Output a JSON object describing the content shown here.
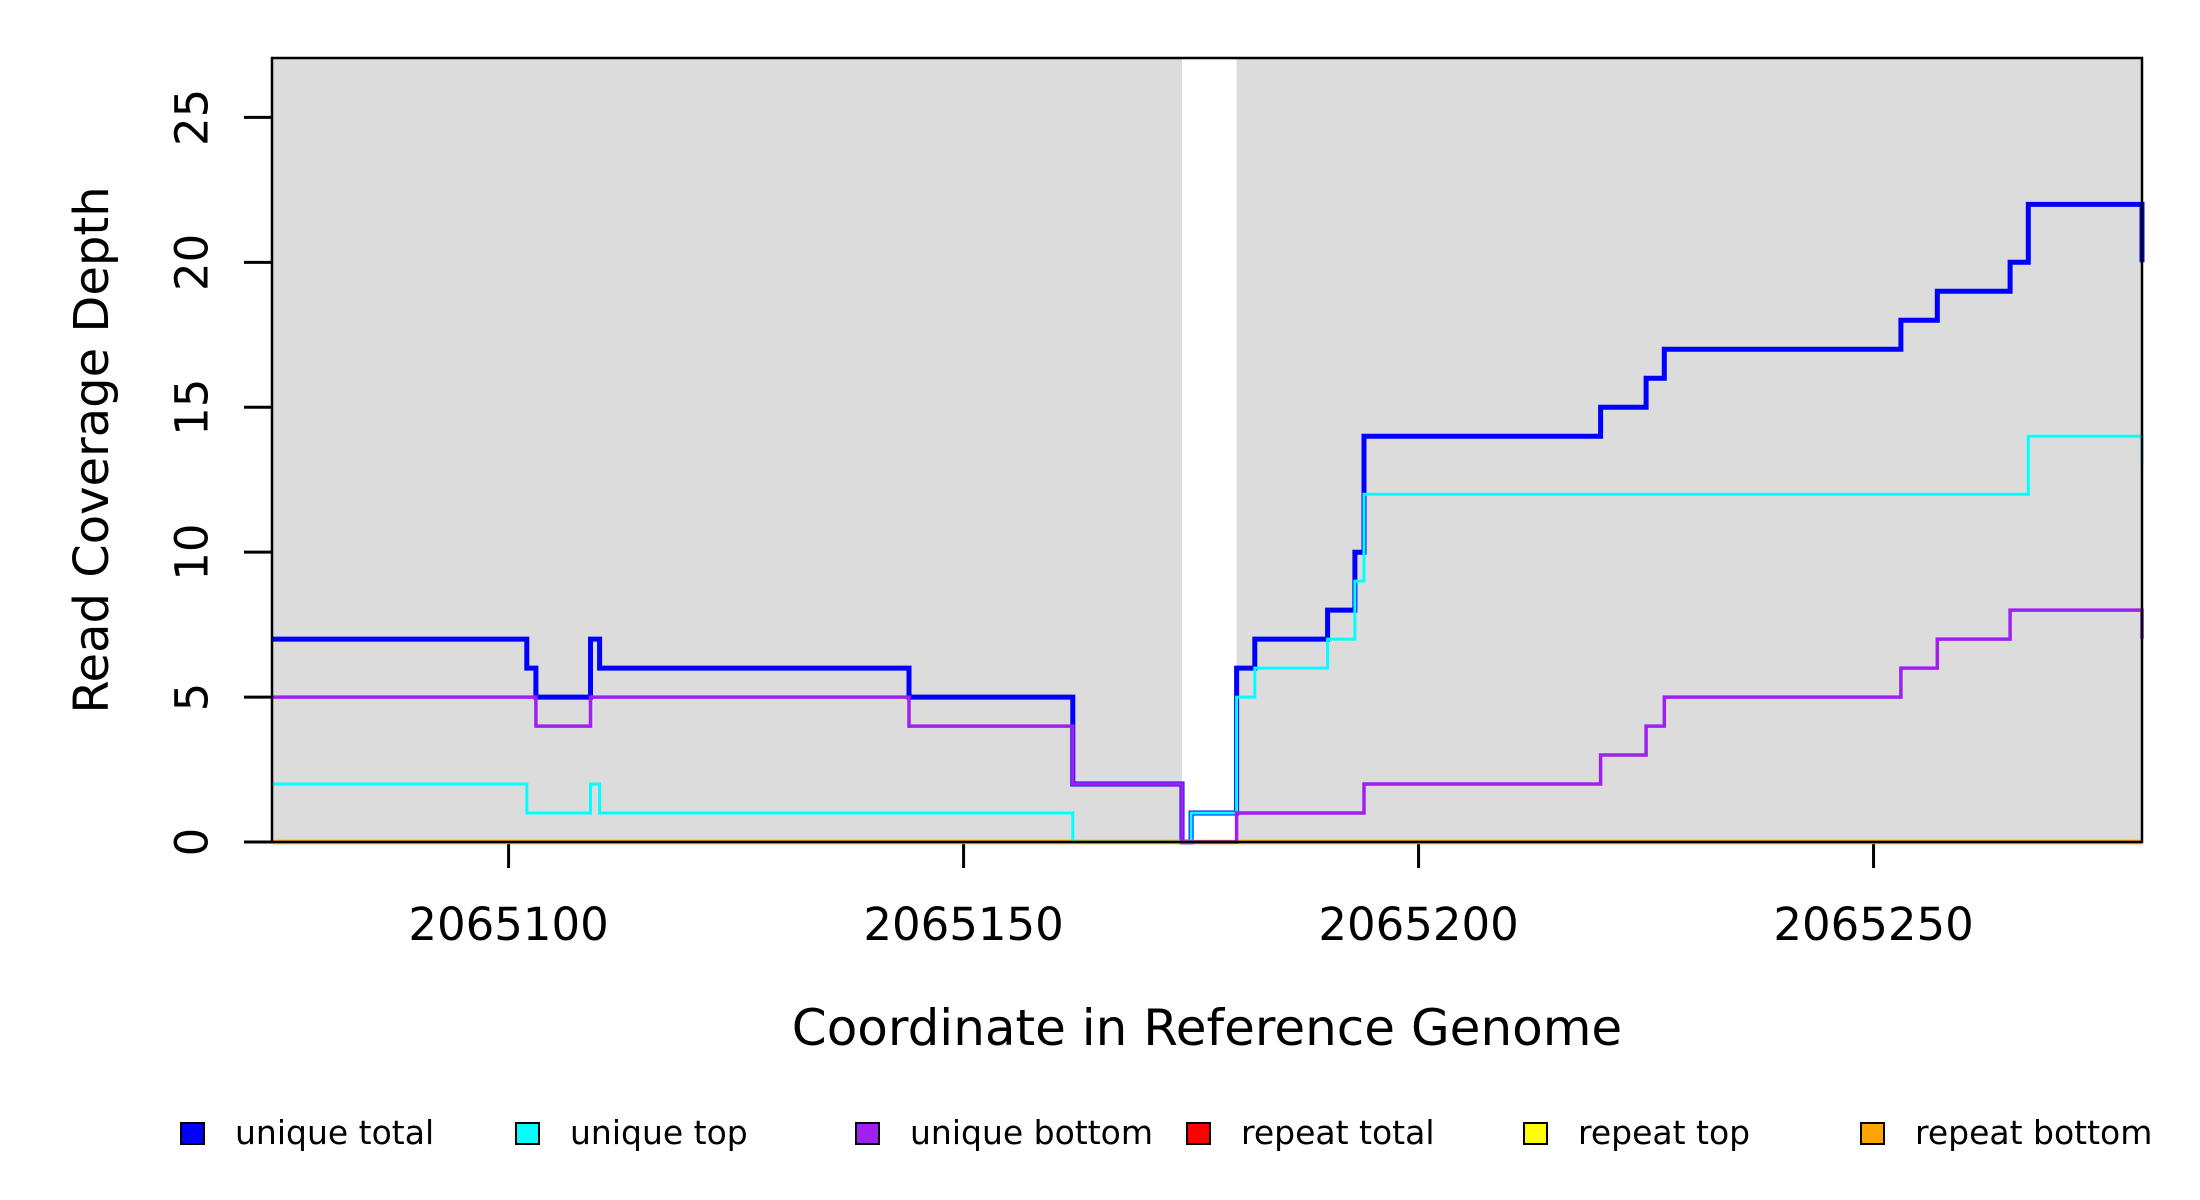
{
  "chart_data": {
    "type": "line",
    "step": true,
    "title": "",
    "xlabel": "Coordinate in Reference Genome",
    "ylabel": "Read Coverage Depth",
    "xlim": [
      2065074,
      2065279.5
    ],
    "ylim": [
      0,
      27.05
    ],
    "xticks": [
      2065100,
      2065150,
      2065200,
      2065250
    ],
    "yticks": [
      0,
      5,
      10,
      15,
      20,
      25
    ],
    "grid": false,
    "legend_position": "bottom",
    "plot_background": "#DCDCDC",
    "page_background": "#FFFFFF",
    "no_data_gap_x": [
      2065174,
      2065180
    ],
    "series": [
      {
        "name": "unique total",
        "color": "#0000FF",
        "line_width": 5,
        "steps": [
          [
            2065074,
            7
          ],
          [
            2065102,
            6
          ],
          [
            2065103,
            5
          ],
          [
            2065109,
            7
          ],
          [
            2065110,
            6
          ],
          [
            2065144,
            5
          ],
          [
            2065162,
            2
          ],
          [
            2065174,
            0
          ],
          [
            2065175,
            1
          ],
          [
            2065180,
            6
          ],
          [
            2065182,
            7
          ],
          [
            2065190,
            8
          ],
          [
            2065193,
            10
          ],
          [
            2065194,
            14
          ],
          [
            2065220,
            15
          ],
          [
            2065225,
            16
          ],
          [
            2065227,
            17
          ],
          [
            2065253,
            18
          ],
          [
            2065257,
            19
          ],
          [
            2065265,
            20
          ],
          [
            2065267,
            22
          ],
          [
            2065279.5,
            20
          ]
        ]
      },
      {
        "name": "unique top",
        "color": "#00FFFF",
        "line_width": 3,
        "steps": [
          [
            2065074,
            2
          ],
          [
            2065102,
            1
          ],
          [
            2065109,
            2
          ],
          [
            2065110,
            1
          ],
          [
            2065162,
            0
          ],
          [
            2065175,
            1
          ],
          [
            2065180,
            5
          ],
          [
            2065182,
            6
          ],
          [
            2065190,
            7
          ],
          [
            2065193,
            9
          ],
          [
            2065194,
            12
          ],
          [
            2065267,
            14
          ],
          [
            2065279.5,
            13
          ]
        ]
      },
      {
        "name": "unique bottom",
        "color": "#A020F0",
        "line_width": 3.5,
        "steps": [
          [
            2065074,
            5
          ],
          [
            2065103,
            4
          ],
          [
            2065109,
            5
          ],
          [
            2065144,
            4
          ],
          [
            2065162,
            2
          ],
          [
            2065174,
            0
          ],
          [
            2065180,
            1
          ],
          [
            2065194,
            2
          ],
          [
            2065220,
            3
          ],
          [
            2065225,
            4
          ],
          [
            2065227,
            5
          ],
          [
            2065253,
            6
          ],
          [
            2065257,
            7
          ],
          [
            2065265,
            8
          ],
          [
            2065279.5,
            7
          ]
        ]
      },
      {
        "name": "repeat total",
        "color": "#FF0000",
        "line_width": 3,
        "steps": [
          [
            2065074,
            0
          ],
          [
            2065279.5,
            0
          ]
        ]
      },
      {
        "name": "repeat top",
        "color": "#FFFF00",
        "line_width": 3,
        "steps": [
          [
            2065074,
            0
          ],
          [
            2065279.5,
            0
          ]
        ]
      },
      {
        "name": "repeat bottom",
        "color": "#FFA500",
        "line_width": 4.5,
        "steps": [
          [
            2065074,
            0
          ],
          [
            2065279.5,
            0
          ]
        ]
      }
    ]
  }
}
